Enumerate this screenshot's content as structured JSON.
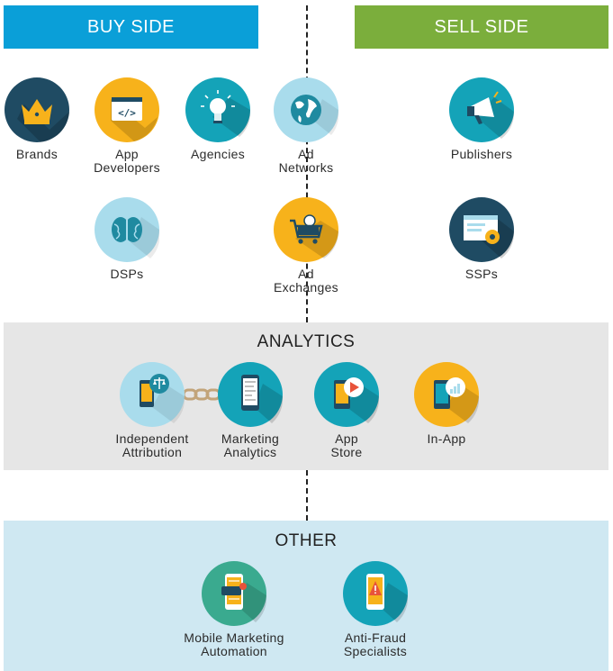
{
  "colors": {
    "buy": "#0a9fd8",
    "sell": "#7bae3c",
    "analytics_bg": "#e6e6e6",
    "other_bg": "#cfe8f2",
    "navy": "#1f4b63",
    "orange": "#f7b21b",
    "teal": "#14a3b8",
    "light_blue": "#a9dcec"
  },
  "headers": {
    "buy_side": "BUY SIDE",
    "sell_side": "SELL SIDE"
  },
  "buy": {
    "brands": "Brands",
    "app_developers": "App\nDevelopers",
    "agencies": "Agencies",
    "dsps": "DSPs"
  },
  "middle": {
    "ad_networks": "Ad\nNetworks",
    "ad_exchanges": "Ad\nExchanges"
  },
  "sell": {
    "publishers": "Publishers",
    "ssps": "SSPs"
  },
  "analytics": {
    "title": "ANALYTICS",
    "independent_attribution": "Independent\nAttribution",
    "marketing_analytics": "Marketing\nAnalytics",
    "app_store": "App\nStore",
    "in_app": "In-App"
  },
  "other": {
    "title": "OTHER",
    "mobile_marketing_automation": "Mobile Marketing\nAutomation",
    "anti_fraud_specialists": "Anti-Fraud\nSpecialists"
  }
}
